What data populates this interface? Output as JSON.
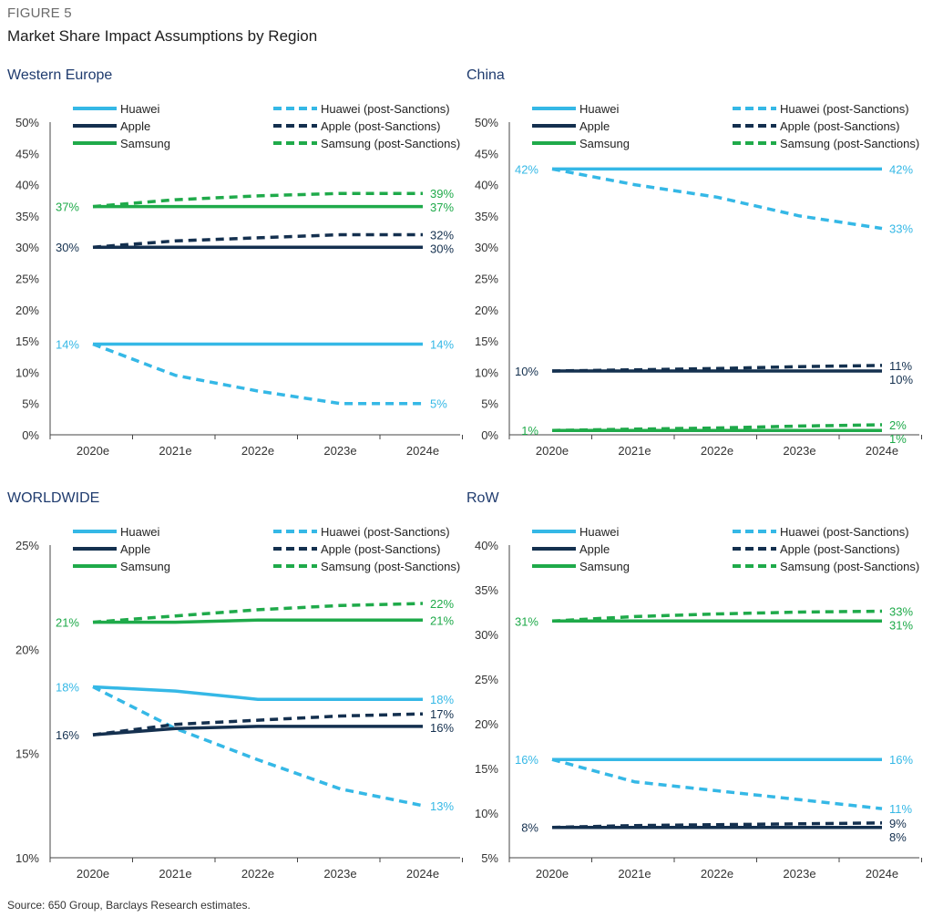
{
  "figure_label": "FIGURE 5",
  "title": "Market Share Impact Assumptions by Region",
  "source": "Source: 650 Group, Barclays Research estimates.",
  "colors": {
    "huawei": "#35b8e6",
    "apple": "#14304f",
    "samsung": "#1faa4a"
  },
  "legend": [
    {
      "label": "Huawei",
      "color": "huawei",
      "dashed": false
    },
    {
      "label": "Huawei (post-Sanctions)",
      "color": "huawei",
      "dashed": true
    },
    {
      "label": "Apple",
      "color": "apple",
      "dashed": false
    },
    {
      "label": "Apple (post-Sanctions)",
      "color": "apple",
      "dashed": true
    },
    {
      "label": "Samsung",
      "color": "samsung",
      "dashed": false
    },
    {
      "label": "Samsung (post-Sanctions)",
      "color": "samsung",
      "dashed": true
    }
  ],
  "chart_data": [
    {
      "type": "line",
      "title": "Western Europe",
      "categories": [
        "2020e",
        "2021e",
        "2022e",
        "2023e",
        "2024e"
      ],
      "ylim": [
        0,
        50
      ],
      "yticks": [
        "0%",
        "5%",
        "10%",
        "15%",
        "20%",
        "25%",
        "30%",
        "35%",
        "40%",
        "45%",
        "50%"
      ],
      "series": [
        {
          "name": "Huawei",
          "color": "huawei",
          "dashed": false,
          "values": [
            14.5,
            14.5,
            14.5,
            14.5,
            14.5
          ],
          "start_label": "14%",
          "end_label": "14%"
        },
        {
          "name": "Huawei (post-Sanctions)",
          "color": "huawei",
          "dashed": true,
          "values": [
            14.5,
            9.5,
            7,
            5,
            5
          ],
          "start_label": "",
          "end_label": "5%"
        },
        {
          "name": "Apple",
          "color": "apple",
          "dashed": false,
          "values": [
            30,
            30,
            30,
            30,
            30
          ],
          "start_label": "30%",
          "end_label": "30%"
        },
        {
          "name": "Apple (post-Sanctions)",
          "color": "apple",
          "dashed": true,
          "values": [
            30,
            31,
            31.5,
            32,
            32
          ],
          "start_label": "",
          "end_label": "32%"
        },
        {
          "name": "Samsung",
          "color": "samsung",
          "dashed": false,
          "values": [
            36.5,
            36.5,
            36.5,
            36.5,
            36.5
          ],
          "start_label": "37%",
          "end_label": "37%"
        },
        {
          "name": "Samsung (post-Sanctions)",
          "color": "samsung",
          "dashed": true,
          "values": [
            36.5,
            37.6,
            38.2,
            38.6,
            38.6
          ],
          "start_label": "",
          "end_label": "39%"
        }
      ]
    },
    {
      "type": "line",
      "title": "China",
      "categories": [
        "2020e",
        "2021e",
        "2022e",
        "2023e",
        "2024e"
      ],
      "ylim": [
        0,
        50
      ],
      "yticks": [
        "0%",
        "5%",
        "10%",
        "15%",
        "20%",
        "25%",
        "30%",
        "35%",
        "40%",
        "45%",
        "50%"
      ],
      "series": [
        {
          "name": "Huawei",
          "color": "huawei",
          "dashed": false,
          "values": [
            42.5,
            42.5,
            42.5,
            42.5,
            42.5
          ],
          "start_label": "42%",
          "end_label": "42%"
        },
        {
          "name": "Huawei (post-Sanctions)",
          "color": "huawei",
          "dashed": true,
          "values": [
            42.5,
            40,
            38,
            35,
            33
          ],
          "start_label": "",
          "end_label": "33%"
        },
        {
          "name": "Apple",
          "color": "apple",
          "dashed": false,
          "values": [
            10.2,
            10.2,
            10.2,
            10.2,
            10.2
          ],
          "start_label": "10%",
          "end_label": "10%"
        },
        {
          "name": "Apple (post-Sanctions)",
          "color": "apple",
          "dashed": true,
          "values": [
            10.2,
            10.4,
            10.6,
            10.9,
            11.1
          ],
          "start_label": "",
          "end_label": "11%"
        },
        {
          "name": "Samsung",
          "color": "samsung",
          "dashed": false,
          "values": [
            0.7,
            0.7,
            0.7,
            0.7,
            0.7
          ],
          "start_label": "1%",
          "end_label": "1%"
        },
        {
          "name": "Samsung (post-Sanctions)",
          "color": "samsung",
          "dashed": true,
          "values": [
            0.7,
            0.9,
            1.1,
            1.4,
            1.6
          ],
          "start_label": "",
          "end_label": "2%"
        }
      ]
    },
    {
      "type": "line",
      "title": "WORLDWIDE",
      "categories": [
        "2020e",
        "2021e",
        "2022e",
        "2023e",
        "2024e"
      ],
      "ylim": [
        10,
        25
      ],
      "yticks": [
        "10%",
        "15%",
        "20%",
        "25%"
      ],
      "series": [
        {
          "name": "Huawei",
          "color": "huawei",
          "dashed": false,
          "values": [
            18.2,
            18,
            17.6,
            17.6,
            17.6
          ],
          "start_label": "18%",
          "end_label": "18%"
        },
        {
          "name": "Huawei (post-Sanctions)",
          "color": "huawei",
          "dashed": true,
          "values": [
            18.2,
            16.2,
            14.7,
            13.3,
            12.5
          ],
          "start_label": "",
          "end_label": "13%"
        },
        {
          "name": "Apple",
          "color": "apple",
          "dashed": false,
          "values": [
            15.9,
            16.2,
            16.3,
            16.3,
            16.3
          ],
          "start_label": "16%",
          "end_label": "16%"
        },
        {
          "name": "Apple (post-Sanctions)",
          "color": "apple",
          "dashed": true,
          "values": [
            15.9,
            16.4,
            16.6,
            16.8,
            16.9
          ],
          "start_label": "",
          "end_label": "17%"
        },
        {
          "name": "Samsung",
          "color": "samsung",
          "dashed": false,
          "values": [
            21.3,
            21.3,
            21.4,
            21.4,
            21.4
          ],
          "start_label": "21%",
          "end_label": "21%"
        },
        {
          "name": "Samsung (post-Sanctions)",
          "color": "samsung",
          "dashed": true,
          "values": [
            21.3,
            21.6,
            21.9,
            22.1,
            22.2
          ],
          "start_label": "",
          "end_label": "22%"
        }
      ]
    },
    {
      "type": "line",
      "title": "RoW",
      "categories": [
        "2020e",
        "2021e",
        "2022e",
        "2023e",
        "2024e"
      ],
      "ylim": [
        5,
        40
      ],
      "yticks": [
        "5%",
        "10%",
        "15%",
        "20%",
        "25%",
        "30%",
        "35%",
        "40%"
      ],
      "series": [
        {
          "name": "Huawei",
          "color": "huawei",
          "dashed": false,
          "values": [
            16,
            16,
            16,
            16,
            16
          ],
          "start_label": "16%",
          "end_label": "16%"
        },
        {
          "name": "Huawei (post-Sanctions)",
          "color": "huawei",
          "dashed": true,
          "values": [
            16,
            13.5,
            12.5,
            11.5,
            10.5
          ],
          "start_label": "",
          "end_label": "11%"
        },
        {
          "name": "Apple",
          "color": "apple",
          "dashed": false,
          "values": [
            8.4,
            8.4,
            8.4,
            8.4,
            8.4
          ],
          "start_label": "8%",
          "end_label": "8%"
        },
        {
          "name": "Apple (post-Sanctions)",
          "color": "apple",
          "dashed": true,
          "values": [
            8.4,
            8.6,
            8.7,
            8.8,
            8.9
          ],
          "start_label": "",
          "end_label": "9%"
        },
        {
          "name": "Samsung",
          "color": "samsung",
          "dashed": false,
          "values": [
            31.5,
            31.5,
            31.5,
            31.5,
            31.5
          ],
          "start_label": "31%",
          "end_label": "31%"
        },
        {
          "name": "Samsung (post-Sanctions)",
          "color": "samsung",
          "dashed": true,
          "values": [
            31.5,
            32,
            32.3,
            32.5,
            32.6
          ],
          "start_label": "",
          "end_label": "33%"
        }
      ]
    }
  ]
}
